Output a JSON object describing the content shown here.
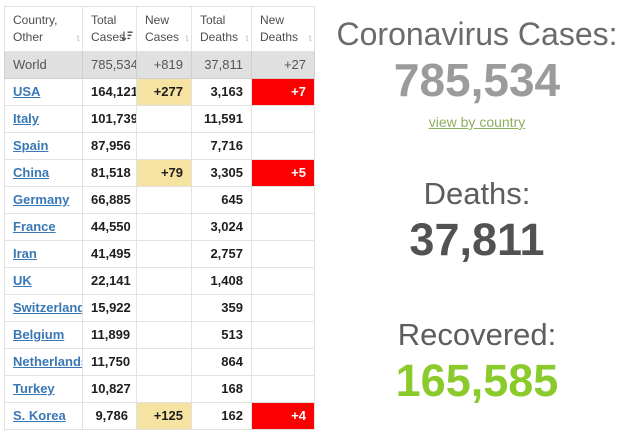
{
  "table": {
    "headers": [
      {
        "line1": "Country,",
        "line2": "Other",
        "sorted": false
      },
      {
        "line1": "Total",
        "line2": "Cases",
        "sorted": true
      },
      {
        "line1": "New",
        "line2": "Cases",
        "sorted": false
      },
      {
        "line1": "Total",
        "line2": "Deaths",
        "sorted": false
      },
      {
        "line1": "New",
        "line2": "Deaths",
        "sorted": false
      }
    ],
    "world_row": {
      "country": "World",
      "total_cases": "785,534",
      "new_cases": "+819",
      "total_deaths": "37,811",
      "new_deaths": "+27"
    },
    "rows": [
      {
        "country": "USA",
        "total_cases": "164,121",
        "new_cases": "+277",
        "total_deaths": "3,163",
        "new_deaths": "+7"
      },
      {
        "country": "Italy",
        "total_cases": "101,739",
        "new_cases": "",
        "total_deaths": "11,591",
        "new_deaths": ""
      },
      {
        "country": "Spain",
        "total_cases": "87,956",
        "new_cases": "",
        "total_deaths": "7,716",
        "new_deaths": ""
      },
      {
        "country": "China",
        "total_cases": "81,518",
        "new_cases": "+79",
        "total_deaths": "3,305",
        "new_deaths": "+5"
      },
      {
        "country": "Germany",
        "total_cases": "66,885",
        "new_cases": "",
        "total_deaths": "645",
        "new_deaths": ""
      },
      {
        "country": "France",
        "total_cases": "44,550",
        "new_cases": "",
        "total_deaths": "3,024",
        "new_deaths": ""
      },
      {
        "country": "Iran",
        "total_cases": "41,495",
        "new_cases": "",
        "total_deaths": "2,757",
        "new_deaths": ""
      },
      {
        "country": "UK",
        "total_cases": "22,141",
        "new_cases": "",
        "total_deaths": "1,408",
        "new_deaths": ""
      },
      {
        "country": "Switzerland",
        "total_cases": "15,922",
        "new_cases": "",
        "total_deaths": "359",
        "new_deaths": ""
      },
      {
        "country": "Belgium",
        "total_cases": "11,899",
        "new_cases": "",
        "total_deaths": "513",
        "new_deaths": ""
      },
      {
        "country": "Netherlands",
        "total_cases": "11,750",
        "new_cases": "",
        "total_deaths": "864",
        "new_deaths": ""
      },
      {
        "country": "Turkey",
        "total_cases": "10,827",
        "new_cases": "",
        "total_deaths": "168",
        "new_deaths": ""
      },
      {
        "country": "S. Korea",
        "total_cases": "9,786",
        "new_cases": "+125",
        "total_deaths": "162",
        "new_deaths": "+4"
      }
    ]
  },
  "counters": {
    "cases_label": "Coronavirus Cases:",
    "cases_value": "785,534",
    "view_by_country": "view by country",
    "deaths_label": "Deaths:",
    "deaths_value": "37,811",
    "recovered_label": "Recovered:",
    "recovered_value": "165,585"
  },
  "colors": {
    "accent_green": "#8ACA2B",
    "highlight_yellow": "#F7E3A1",
    "highlight_red": "#FB0000",
    "link_blue": "#3978B5",
    "world_row_bg": "#E0E0E0",
    "cases_number_gray": "#9B9B9B",
    "deaths_number_gray": "#525252"
  }
}
